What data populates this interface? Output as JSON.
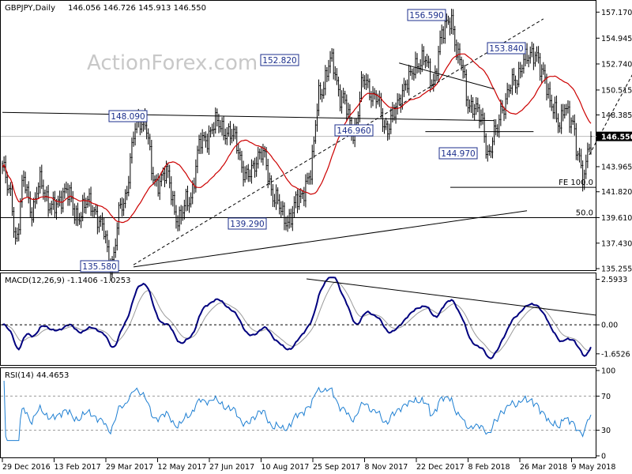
{
  "chart_data": [
    {
      "panel": "price",
      "type": "candlestick",
      "symbol_label": "GBPJPY,Daily",
      "ohlc_label": "146.056 146.726 145.913 146.550",
      "watermark": "ActionForex.com",
      "ylim": [
        135.255,
        157.935
      ],
      "y_ticks": [
        "157.170",
        "154.945",
        "152.740",
        "150.515",
        "148.385",
        "146.550",
        "143.965",
        "141.820",
        "139.610",
        "137.430",
        "135.255"
      ],
      "last_price": "146.550",
      "x_ticks": [
        "29 Dec 2016",
        "13 Feb 2017",
        "29 Mar 2017",
        "12 May 2017",
        "27 Jun 2017",
        "10 Aug 2017",
        "25 Sep 2017",
        "8 Nov 2017",
        "22 Dec 2017",
        "8 Feb 2018",
        "26 Mar 2018",
        "9 May 2018"
      ],
      "colors": {
        "candles": "#000000",
        "ma": "#cc0000",
        "callout": "#1c2f8c",
        "lines": "#000000"
      },
      "callouts": [
        {
          "text": "156.590",
          "x": 170,
          "y": 156.59
        },
        {
          "text": "153.840",
          "x": 227,
          "y": 153.84
        },
        {
          "text": "152.820",
          "x": 124,
          "y": 152.82
        },
        {
          "text": "148.090",
          "x": 60,
          "y": 148.09
        },
        {
          "text": "146.960",
          "x": 146,
          "y": 146.96
        },
        {
          "text": "144.970",
          "x": 206,
          "y": 144.97
        },
        {
          "text": "139.290",
          "x": 109,
          "y": 139.29
        },
        {
          "text": "135.580",
          "x": 53,
          "y": 135.58
        }
      ],
      "annotations": [
        {
          "text": "FE 100.0",
          "y": 142.2
        },
        {
          "text": "50.0",
          "y": 139.61
        }
      ]
    },
    {
      "panel": "macd",
      "type": "line",
      "label": "MACD(12,26,9) -1.1406 -1.0253",
      "ylim": [
        -2.2,
        2.8
      ],
      "y_ticks": [
        "2.5933",
        "0.00",
        "-1.6526"
      ],
      "series": [
        {
          "name": "MACD",
          "color": "#00007f"
        },
        {
          "name": "Signal",
          "color": "#999999"
        }
      ]
    },
    {
      "panel": "rsi",
      "type": "line",
      "label": "RSI(14) 44.4653",
      "ylim": [
        0,
        100
      ],
      "y_ticks": [
        "100",
        "70",
        "30",
        "0"
      ],
      "series": [
        {
          "name": "RSI",
          "color": "#1e7fd2"
        }
      ]
    }
  ]
}
